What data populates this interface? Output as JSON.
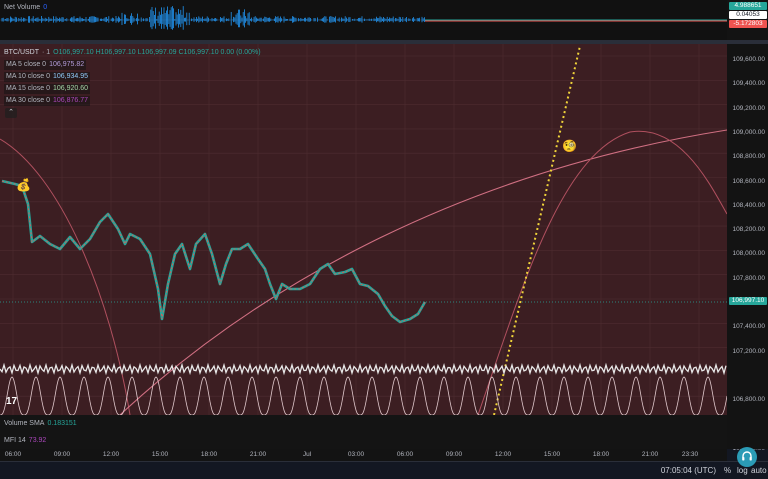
{
  "net_volume": {
    "label": "Net Volume",
    "value": "0",
    "badges": [
      {
        "text": "4.988651",
        "bg": "#26a69a",
        "fg": "#ffffff"
      },
      {
        "text": "0.04053",
        "bg": "#ffffff",
        "fg": "#131722"
      },
      {
        "text": "-5.172803",
        "bg": "#ef5350",
        "fg": "#ffffff"
      }
    ]
  },
  "symbol": {
    "pair": "BTC/USDT",
    "interval": "· 1",
    "ohlc": "O106,997.10 H106,997.10 L106,997.09 C106,997.10 0.00 (0.00%)"
  },
  "moving_averages": [
    {
      "label": "MA 5 close 0",
      "value": "106,975.82",
      "color": "#b39ddb"
    },
    {
      "label": "MA 10 close 0",
      "value": "106,934.95",
      "color": "#90caf9"
    },
    {
      "label": "MA 15 close 0",
      "value": "106,920.60",
      "color": "#a5d6a7"
    },
    {
      "label": "MA 30 close 0",
      "value": "106,876.77",
      "color": "#ab47bc"
    }
  ],
  "collapse_glyph": "⌃",
  "price_scale": [
    "109,600.00",
    "109,400.00",
    "109,200.00",
    "109,000.00",
    "108,800.00",
    "108,600.00",
    "108,400.00",
    "108,200.00",
    "108,000.00",
    "107,800.00",
    "107,600.00",
    "107,400.00",
    "107,200.00",
    "106,800.00",
    "106,600.00",
    "106,400.00",
    "106,200.00",
    "106,000.00"
  ],
  "current_price": "106,997.10",
  "volume_sma": {
    "label": "Volume SMA",
    "value": "0.183151"
  },
  "mfi": {
    "label": "MFI 14",
    "value": "73.92"
  },
  "time_axis": [
    "06:00",
    "09:00",
    "12:00",
    "15:00",
    "18:00",
    "21:00",
    "Jul",
    "03:00",
    "06:00",
    "09:00",
    "12:00",
    "15:00",
    "18:00",
    "21:00",
    "23:30"
  ],
  "bottom_bar": {
    "clock": "07:05:04 (UTC)",
    "percent": "%",
    "log": "log",
    "auto": "auto"
  },
  "tv_logo": "17",
  "emoji_left": "💰",
  "emoji_right": "🧐",
  "colors": {
    "main_bg": "#3c1e22",
    "price_line": "#26a69a",
    "accent": "#2b9bb6",
    "dotted_line": "#f0d43a",
    "curve": "#c25a6c"
  }
}
